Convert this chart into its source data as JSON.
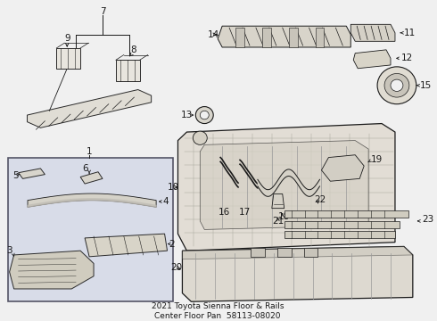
{
  "bg_color": "#f0f0f0",
  "line_color": "#1a1a1a",
  "label_fontsize": 7.5,
  "box_fill": "#d8dce8",
  "box_edge": "#555566",
  "part_fill": "#e8e5de",
  "part_edge": "#2a2a2a",
  "grid_color": "#999988",
  "title": "2021 Toyota Sienna Floor & Rails\nCenter Floor Pan  58113-08020",
  "title_fontsize": 6.5
}
